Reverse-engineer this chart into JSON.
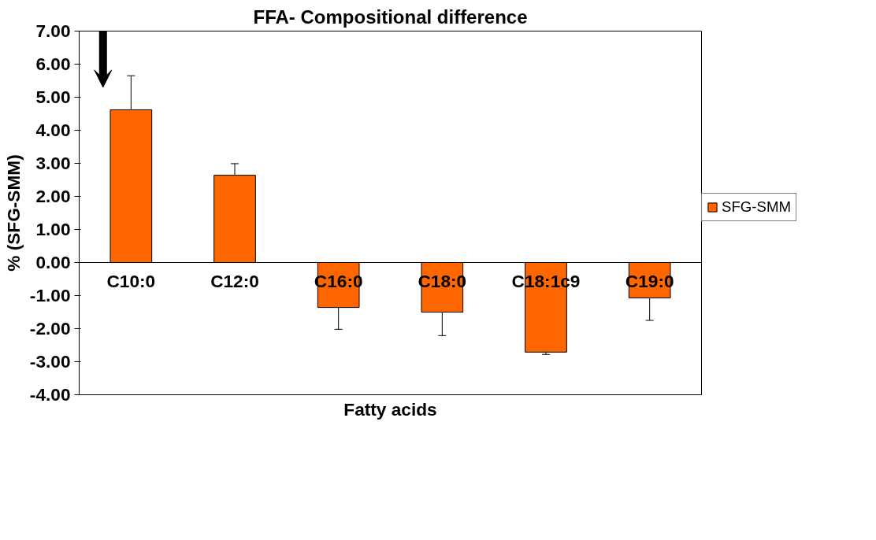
{
  "chart_data": {
    "type": "bar",
    "title": "FFA- Compositional difference",
    "xlabel": "Fatty acids",
    "ylabel": "% (SFG-SMM)",
    "categories": [
      "C10:0",
      "C12:0",
      "C16:0",
      "C18:0",
      "C18:1c9",
      "C19:0"
    ],
    "series": [
      {
        "name": "SFG-SMM",
        "color": "#ff6600",
        "values": [
          4.62,
          2.64,
          -1.36,
          -1.5,
          -2.71,
          -1.07
        ],
        "errors": [
          1.03,
          0.35,
          0.66,
          0.71,
          0.07,
          0.68
        ]
      }
    ],
    "ylim": [
      -4,
      7
    ],
    "yticks": [
      {
        "value": 7,
        "label": "7.00"
      },
      {
        "value": 6,
        "label": "6.00"
      },
      {
        "value": 5,
        "label": "5.00"
      },
      {
        "value": 4,
        "label": "4.00"
      },
      {
        "value": 3,
        "label": "3.00"
      },
      {
        "value": 2,
        "label": "2.00"
      },
      {
        "value": 1,
        "label": "1.00"
      },
      {
        "value": 0,
        "label": "0.00"
      },
      {
        "value": -1,
        "label": "-1.00"
      },
      {
        "value": -2,
        "label": "-2.00"
      },
      {
        "value": -3,
        "label": "-3.00"
      },
      {
        "value": -4,
        "label": "-4.00"
      }
    ],
    "grid": false,
    "legend": "right"
  }
}
